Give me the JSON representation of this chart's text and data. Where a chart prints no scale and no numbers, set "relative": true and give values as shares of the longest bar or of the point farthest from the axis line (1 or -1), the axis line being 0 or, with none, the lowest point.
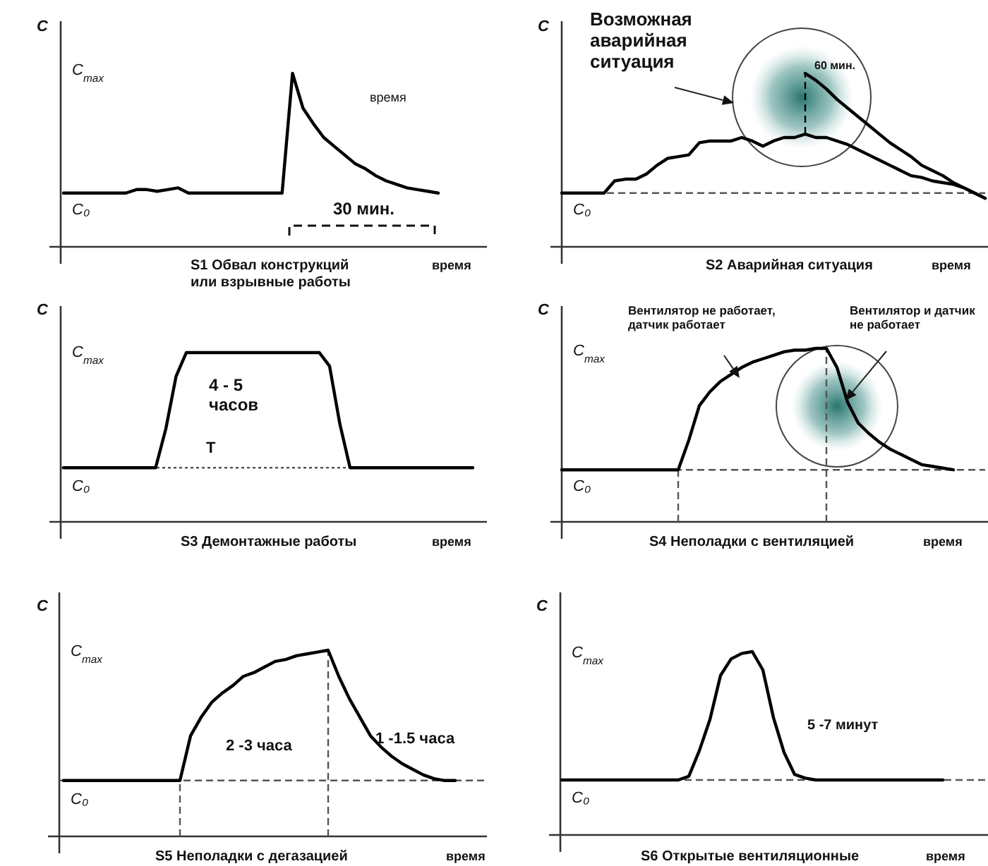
{
  "chart_data": [
    {
      "type": "line",
      "relative": true,
      "title": "S1 Обвал конструкций\nили взрывные работы",
      "xlabel": "время",
      "ylabel": "C",
      "categories": [
        null,
        null,
        null,
        null,
        null,
        null,
        null,
        null,
        null,
        null,
        null,
        null,
        null,
        null,
        null,
        null,
        null,
        null,
        null,
        null,
        null,
        null,
        null,
        null,
        null,
        null,
        null,
        null,
        null,
        null,
        null,
        null,
        null,
        null,
        null,
        null,
        null,
        null,
        null,
        null,
        null
      ],
      "series": [
        {
          "color": "#000000",
          "values": [
            0.31,
            0.31,
            0.31,
            0.31,
            0.31,
            0.31,
            0.31,
            0.33,
            0.33,
            0.32,
            0.33,
            0.34,
            0.31,
            0.31,
            0.31,
            0.31,
            0.31,
            0.31,
            0.31,
            0.31,
            0.31,
            0.31,
            1,
            0.8,
            0.71,
            0.63,
            0.58,
            0.53,
            0.48,
            0.45,
            0.41,
            0.38,
            0.36,
            0.34,
            0.33,
            0.32,
            0.31,
            null,
            null,
            null,
            null
          ]
        }
      ],
      "annotations": [
        "время",
        "30 мин.",
        "C$_{max}$",
        "C₀"
      ]
    },
    {
      "type": "line",
      "relative": true,
      "title": "S2 Аварийная ситуация",
      "xlabel": "время",
      "ylabel": "C",
      "categories": [
        null,
        null,
        null,
        null,
        null,
        null,
        null,
        null,
        null,
        null,
        null,
        null,
        null,
        null,
        null,
        null,
        null,
        null,
        null,
        null,
        null,
        null,
        null,
        null,
        null,
        null,
        null,
        null,
        null,
        null,
        null,
        null,
        null,
        null,
        null,
        null,
        null,
        null,
        null,
        null,
        null
      ],
      "series": [
        {
          "color": "#000000",
          "values": [
            0.31,
            0.31,
            0.31,
            0.31,
            0.31,
            0.38,
            0.39,
            0.39,
            0.42,
            0.47,
            0.51,
            0.52,
            0.53,
            0.6,
            0.61,
            0.61,
            0.61,
            0.63,
            0.61,
            0.58,
            0.61,
            0.63,
            0.63,
            0.65,
            0.63,
            0.63,
            0.61,
            0.59,
            0.56,
            0.53,
            0.5,
            0.47,
            0.44,
            0.41,
            0.4,
            0.38,
            0.37,
            0.36,
            0.34,
            0.31,
            0.28
          ]
        },
        {
          "color": "#000000",
          "values": [
            null,
            null,
            null,
            null,
            null,
            null,
            null,
            null,
            null,
            null,
            null,
            null,
            null,
            null,
            null,
            null,
            null,
            null,
            null,
            null,
            null,
            null,
            null,
            1,
            0.96,
            0.91,
            0.85,
            0.8,
            0.75,
            0.7,
            0.65,
            0.6,
            0.56,
            0.52,
            0.47,
            0.44,
            0.41,
            0.37,
            0.34,
            0.31,
            0.28
          ]
        }
      ],
      "ref_lines": [
        {
          "axis": "y",
          "value": 0.31,
          "line_style": "dashed",
          "color": "#555555"
        }
      ],
      "annotations": [
        "Возможная\nаварийная\nситуация",
        "60 мин.",
        "C₀"
      ]
    },
    {
      "type": "line",
      "relative": true,
      "title": "S3 Демонтажные работы",
      "xlabel": "время",
      "ylabel": "C",
      "categories": [
        null,
        null,
        null,
        null,
        null,
        null,
        null,
        null,
        null,
        null,
        null,
        null,
        null,
        null,
        null,
        null,
        null,
        null,
        null,
        null,
        null,
        null,
        null,
        null,
        null,
        null,
        null,
        null,
        null,
        null,
        null,
        null,
        null,
        null,
        null,
        null,
        null,
        null,
        null,
        null,
        null
      ],
      "series": [
        {
          "color": "#000000",
          "values": [
            0.32,
            0.32,
            0.32,
            0.32,
            0.32,
            0.32,
            0.32,
            0.32,
            0.32,
            0.32,
            0.55,
            0.86,
            1,
            1,
            1,
            1,
            1,
            1,
            1,
            1,
            1,
            1,
            1,
            1,
            1,
            1,
            0.92,
            0.58,
            0.32,
            0.32,
            0.32,
            0.32,
            0.32,
            0.32,
            0.32,
            0.32,
            0.32,
            0.32,
            0.32,
            0.32,
            0.32
          ]
        }
      ],
      "ref_lines": [
        {
          "axis": "y",
          "value": 0.32,
          "line_style": "dotted",
          "color": "#555555",
          "label": "T"
        }
      ],
      "annotations": [
        "4 - 5\nчасов",
        "C$_{max}$",
        "C₀"
      ]
    },
    {
      "type": "line",
      "relative": true,
      "title": "S4   Неполадки с вентиляцией",
      "xlabel": "время",
      "ylabel": "C",
      "categories": [
        null,
        null,
        null,
        null,
        null,
        null,
        null,
        null,
        null,
        null,
        null,
        null,
        null,
        null,
        null,
        null,
        null,
        null,
        null,
        null,
        null,
        null,
        null,
        null,
        null,
        null,
        null,
        null,
        null,
        null,
        null,
        null,
        null,
        null,
        null,
        null,
        null,
        null,
        null,
        null,
        null
      ],
      "series": [
        {
          "color": "#000000",
          "values": [
            0.3,
            0.3,
            0.3,
            0.3,
            0.3,
            0.3,
            0.3,
            0.3,
            0.3,
            0.3,
            0.3,
            0.3,
            0.47,
            0.67,
            0.75,
            0.81,
            0.85,
            0.89,
            0.92,
            0.94,
            0.96,
            0.98,
            0.99,
            0.99,
            1,
            1,
            0.89,
            0.69,
            0.57,
            0.51,
            0.46,
            0.42,
            0.39,
            0.36,
            0.33,
            0.32,
            0.31,
            0.3,
            null,
            null,
            null
          ]
        }
      ],
      "ref_lines": [
        {
          "axis": "y",
          "value": 0.3,
          "line_style": "dashed",
          "color": "#555555"
        }
      ],
      "annotations": [
        "Вентилятор не работает,\nдатчик работает",
        "Вентилятор и датчик\nне работает",
        "C$_{max}$",
        "C₀"
      ]
    },
    {
      "type": "line",
      "relative": true,
      "title": "S5   Неполадки с дегазацией",
      "xlabel": "время",
      "ylabel": "C",
      "categories": [
        null,
        null,
        null,
        null,
        null,
        null,
        null,
        null,
        null,
        null,
        null,
        null,
        null,
        null,
        null,
        null,
        null,
        null,
        null,
        null,
        null,
        null,
        null,
        null,
        null,
        null,
        null,
        null,
        null,
        null,
        null,
        null,
        null,
        null,
        null,
        null,
        null,
        null,
        null,
        null,
        null
      ],
      "series": [
        {
          "color": "#000000",
          "values": [
            0.3,
            0.3,
            0.3,
            0.3,
            0.3,
            0.3,
            0.3,
            0.3,
            0.3,
            0.3,
            0.3,
            0.3,
            0.54,
            0.64,
            0.72,
            0.77,
            0.81,
            0.86,
            0.88,
            0.91,
            0.94,
            0.95,
            0.97,
            0.98,
            0.99,
            1,
            0.86,
            0.74,
            0.64,
            0.54,
            0.48,
            0.43,
            0.39,
            0.36,
            0.33,
            0.31,
            0.3,
            0.3,
            null,
            null,
            null
          ]
        }
      ],
      "ref_lines": [
        {
          "axis": "y",
          "value": 0.3,
          "line_style": "dashed",
          "color": "#555555"
        }
      ],
      "annotations": [
        "2 -3 часа",
        "1 -1.5 часа",
        "C$_{max}$",
        "C₀"
      ]
    },
    {
      "type": "line",
      "relative": true,
      "title": "S6  Открытые вентиляционные",
      "xlabel": "время",
      "ylabel": "C",
      "categories": [
        null,
        null,
        null,
        null,
        null,
        null,
        null,
        null,
        null,
        null,
        null,
        null,
        null,
        null,
        null,
        null,
        null,
        null,
        null,
        null,
        null,
        null,
        null,
        null,
        null,
        null,
        null,
        null,
        null,
        null,
        null,
        null,
        null,
        null,
        null,
        null,
        null,
        null,
        null,
        null,
        null
      ],
      "series": [
        {
          "color": "#000000",
          "values": [
            0.3,
            0.3,
            0.3,
            0.3,
            0.3,
            0.3,
            0.3,
            0.3,
            0.3,
            0.3,
            0.3,
            0.3,
            0.32,
            0.46,
            0.63,
            0.87,
            0.96,
            0.99,
            1,
            0.9,
            0.64,
            0.45,
            0.33,
            0.31,
            0.3,
            0.3,
            0.3,
            0.3,
            0.3,
            0.3,
            0.3,
            0.3,
            0.3,
            0.3,
            0.3,
            0.3,
            0.3,
            null,
            null,
            null,
            null
          ]
        }
      ],
      "ref_lines": [
        {
          "axis": "y",
          "value": 0.3,
          "line_style": "dashed",
          "color": "#555555"
        }
      ],
      "annotations": [
        "5 -7 минут",
        "C$_{max}$",
        "C₀"
      ]
    }
  ]
}
